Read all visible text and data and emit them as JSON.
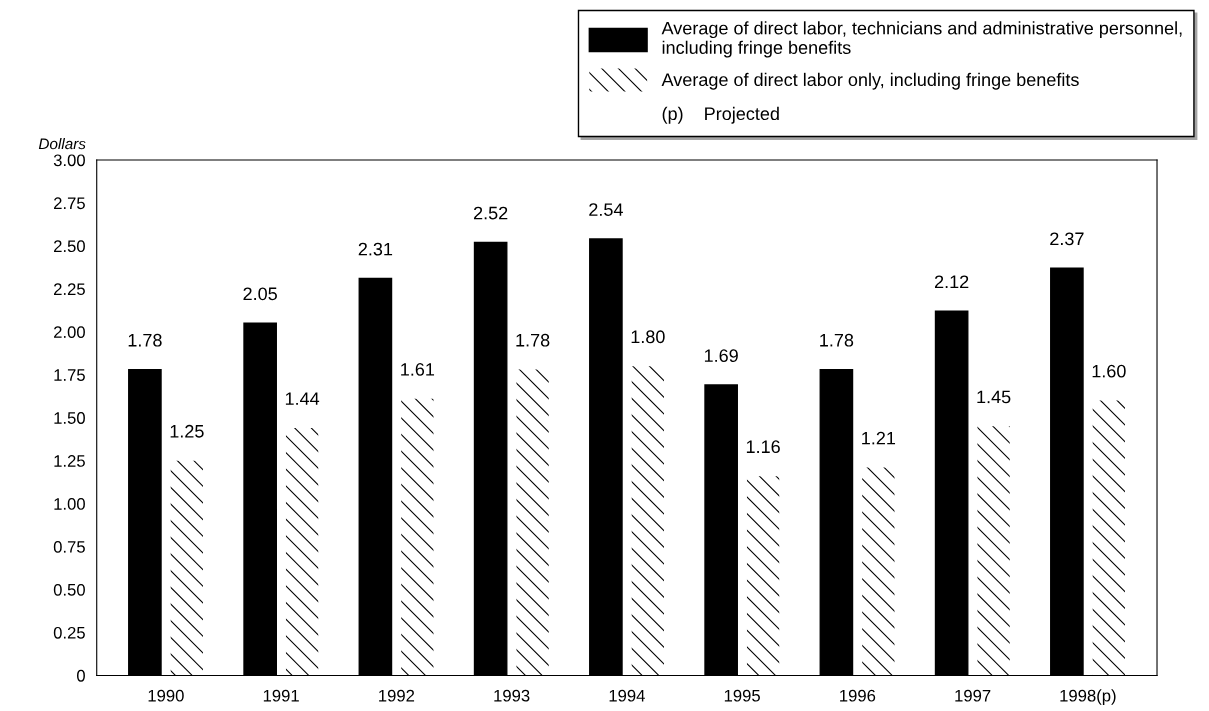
{
  "chart_data": {
    "type": "bar",
    "ylabel": "Dollars",
    "categories": [
      "1990",
      "1991",
      "1992",
      "1993",
      "1994",
      "1995",
      "1996",
      "1997",
      "1998(p)"
    ],
    "series": [
      {
        "name": "Average of direct labor, technicians and administrative personnel,\nincluding fringe benefits",
        "color": "#000000",
        "values": [
          1.78,
          2.05,
          2.31,
          2.52,
          2.54,
          1.69,
          1.78,
          2.12,
          2.37
        ],
        "value_labels": [
          "1.78",
          "2.05",
          "2.31",
          "2.52",
          "2.54",
          "1.69",
          "1.78",
          "2.12",
          "2.37"
        ]
      },
      {
        "name": "Average of direct labor only, including fringe benefits",
        "color": "#ffffff",
        "values": [
          1.25,
          1.44,
          1.61,
          1.78,
          1.8,
          1.16,
          1.21,
          1.45,
          1.6
        ],
        "value_labels": [
          "1.25",
          "1.44",
          "1.61",
          "1.78",
          "1.80",
          "1.16",
          "1.21",
          "1.45",
          "1.60"
        ]
      }
    ],
    "annotations": [
      "(p)    Projected"
    ],
    "ylim": [
      0,
      3
    ],
    "yticks": [
      0,
      {
        "value": 0.25,
        "label": "0.25"
      },
      {
        "value": 0.5,
        "label": "0.50"
      },
      {
        "value": 0.75,
        "label": "0.75"
      },
      {
        "value": 1,
        "label": "1.00"
      },
      {
        "value": 1.25,
        "label": "1.25"
      },
      {
        "value": 1.5,
        "label": "1.50"
      },
      {
        "value": 1.75,
        "label": "1.75"
      },
      {
        "value": 2,
        "label": "2.00"
      },
      {
        "value": 2.25,
        "label": "2.25"
      },
      {
        "value": 2.5,
        "label": "2.50"
      },
      {
        "value": 2.75,
        "label": "2.75"
      },
      {
        "value": 3,
        "label": "3.00"
      }
    ],
    "grid": false,
    "legend": "top right"
  }
}
